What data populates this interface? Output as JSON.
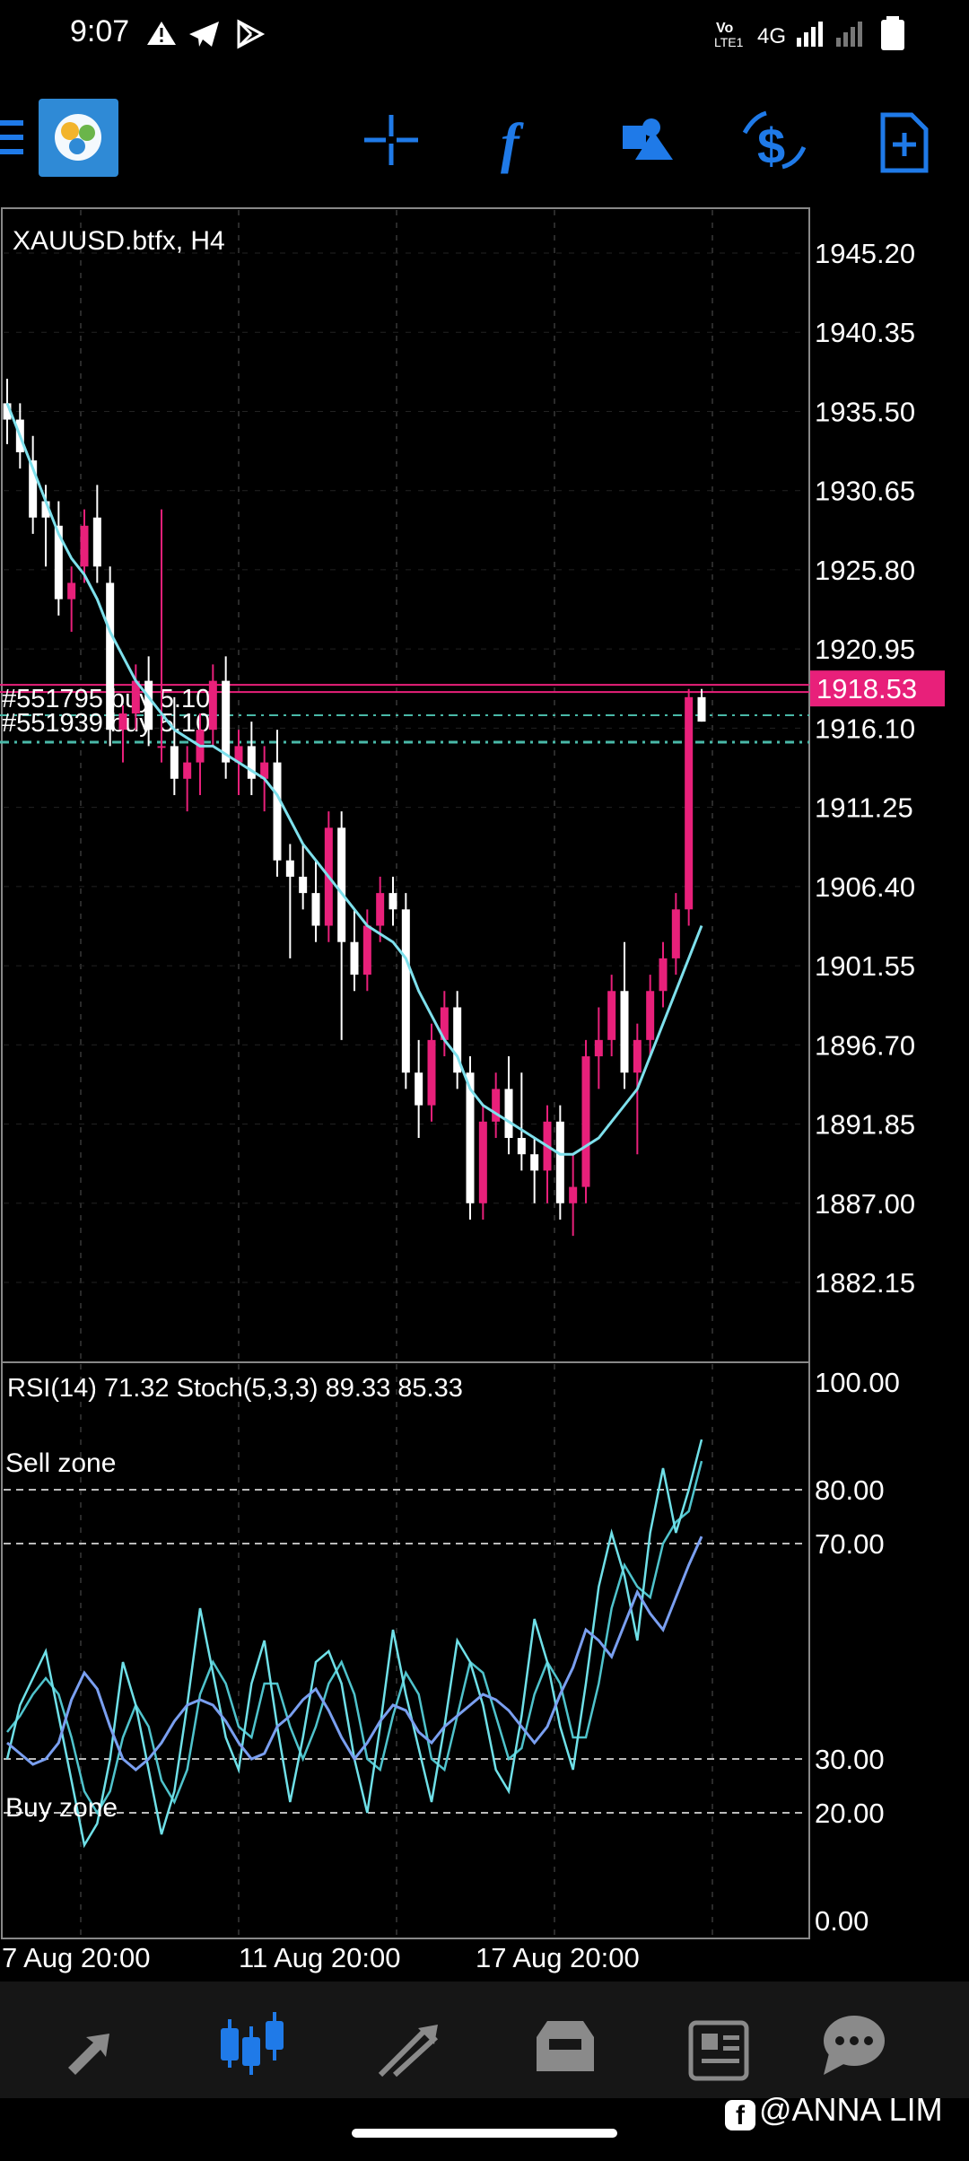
{
  "status_bar": {
    "time": "9:07",
    "network": "4G",
    "volte": "LTE1",
    "icons": [
      "alert-triangle-icon",
      "telegram-icon",
      "play-store-icon",
      "signal-icon",
      "battery-icon"
    ]
  },
  "toolbar": {
    "icons": [
      "menu-icon",
      "metatrader-logo",
      "crosshair-icon",
      "indicators-icon",
      "objects-icon",
      "trade-icon",
      "template-icon"
    ]
  },
  "chart": {
    "symbol": "XAUUSD.btfx, H4",
    "current_price": "1918.53",
    "price_labels": [
      "1945.20",
      "1940.35",
      "1935.50",
      "1930.65",
      "1925.80",
      "1920.95",
      "1916.10",
      "1911.25",
      "1906.40",
      "1901.55",
      "1896.70",
      "1891.85",
      "1887.00",
      "1882.15"
    ],
    "order_lines": [
      "#551795 buy 5.10",
      "#551939 buy 5.10"
    ],
    "date_labels": [
      "7 Aug 20:00",
      "11 Aug 20:00",
      "17 Aug 20:00"
    ]
  },
  "indicator": {
    "title": "RSI(14) 71.32 Stoch(5,3,3) 89.33 85.33",
    "levels": [
      "100.00",
      "80.00",
      "70.00",
      "30.00",
      "20.00",
      "0.00"
    ],
    "sell_zone": "Sell zone",
    "buy_zone": "Buy zone"
  },
  "chart_data": {
    "type": "candlestick",
    "symbol": "XAUUSD.btfx",
    "timeframe": "H4",
    "ylim": [
      1880,
      1948
    ],
    "candles": [
      [
        1936,
        1937.5,
        1933.5,
        1935
      ],
      [
        1935,
        1936,
        1932,
        1933
      ],
      [
        1932.5,
        1934,
        1928,
        1929
      ],
      [
        1930,
        1931,
        1926,
        1929
      ],
      [
        1928.5,
        1930,
        1923,
        1924
      ],
      [
        1924,
        1926,
        1922,
        1925
      ],
      [
        1926,
        1929.5,
        1925,
        1928.5
      ],
      [
        1929,
        1931,
        1925,
        1926
      ],
      [
        1925,
        1926,
        1915,
        1916
      ],
      [
        1916,
        1917.5,
        1914,
        1917
      ],
      [
        1917,
        1920,
        1916,
        1919
      ],
      [
        1919,
        1920.5,
        1915,
        1916
      ],
      [
        1915,
        1929.5,
        1914,
        1915
      ],
      [
        1915,
        1918,
        1912,
        1913
      ],
      [
        1913,
        1915,
        1911,
        1914
      ],
      [
        1914,
        1917,
        1912,
        1916
      ],
      [
        1916,
        1920,
        1915,
        1919
      ],
      [
        1919,
        1920.5,
        1913,
        1914
      ],
      [
        1914,
        1916,
        1912,
        1915
      ],
      [
        1915,
        1916.5,
        1912,
        1913
      ],
      [
        1913,
        1915,
        1911,
        1914
      ],
      [
        1914,
        1916,
        1907,
        1908
      ],
      [
        1908,
        1909,
        1902,
        1907
      ],
      [
        1907,
        1909,
        1905,
        1906
      ],
      [
        1906,
        1908,
        1903,
        1904
      ],
      [
        1904,
        1911,
        1903,
        1910
      ],
      [
        1910,
        1911,
        1897,
        1903
      ],
      [
        1903,
        1905,
        1900,
        1901
      ],
      [
        1901,
        1905,
        1900,
        1904
      ],
      [
        1904,
        1907,
        1903,
        1906
      ],
      [
        1906,
        1907,
        1904,
        1905
      ],
      [
        1905,
        1906,
        1894,
        1895
      ],
      [
        1895,
        1897,
        1891,
        1893
      ],
      [
        1893,
        1898,
        1892,
        1897
      ],
      [
        1897,
        1900,
        1896,
        1899
      ],
      [
        1899,
        1900,
        1894,
        1895
      ],
      [
        1895,
        1896,
        1886,
        1887
      ],
      [
        1887,
        1893,
        1886,
        1892
      ],
      [
        1892,
        1895,
        1891,
        1894
      ],
      [
        1894,
        1896,
        1890,
        1891
      ],
      [
        1891,
        1895,
        1889,
        1890
      ],
      [
        1890,
        1891,
        1887,
        1889
      ],
      [
        1889,
        1893,
        1887,
        1892
      ],
      [
        1892,
        1893,
        1886,
        1887
      ],
      [
        1887,
        1890,
        1885,
        1888
      ],
      [
        1888,
        1897,
        1887,
        1896
      ],
      [
        1896,
        1899,
        1894,
        1897
      ],
      [
        1897,
        1901,
        1896,
        1900
      ],
      [
        1900,
        1903,
        1894,
        1895
      ],
      [
        1895,
        1898,
        1890,
        1897
      ],
      [
        1897,
        1901,
        1896,
        1900
      ],
      [
        1900,
        1903,
        1899,
        1902
      ],
      [
        1902,
        1906,
        1901,
        1905
      ],
      [
        1905,
        1918.5,
        1904,
        1918
      ],
      [
        1918,
        1918.5,
        1916.5,
        1916.5
      ]
    ],
    "ma_line": [
      1936,
      1934,
      1932,
      1930,
      1928,
      1926.5,
      1925.5,
      1924,
      1922,
      1920.5,
      1919,
      1918,
      1917,
      1916,
      1915.5,
      1915,
      1915,
      1914.5,
      1914,
      1913.5,
      1913,
      1912,
      1910.5,
      1909,
      1908,
      1907,
      1906,
      1905,
      1904,
      1903.5,
      1903,
      1902,
      1900,
      1898.5,
      1897,
      1896,
      1894,
      1893,
      1892.5,
      1892,
      1891.5,
      1891,
      1890.5,
      1890,
      1890,
      1890.5,
      1891,
      1892,
      1893,
      1894,
      1896,
      1898,
      1900,
      1902,
      1904
    ],
    "rsi": [
      33,
      31,
      29,
      30,
      33,
      41,
      46,
      43,
      36,
      30,
      28,
      30,
      33,
      37,
      40,
      41,
      40,
      37,
      33,
      30,
      31,
      36,
      38,
      41,
      43,
      39,
      34,
      30,
      33,
      37,
      40,
      39,
      35,
      33,
      36,
      38,
      40,
      42,
      41,
      39,
      36,
      33,
      36,
      42,
      47,
      54,
      52,
      49,
      55,
      61,
      57,
      54,
      60,
      66,
      71.32
    ],
    "stoch_k": [
      30,
      40,
      45,
      50,
      38,
      26,
      14,
      18,
      30,
      48,
      40,
      28,
      16,
      24,
      40,
      58,
      46,
      34,
      28,
      44,
      52,
      36,
      22,
      34,
      48,
      50,
      44,
      30,
      20,
      36,
      54,
      42,
      32,
      22,
      36,
      52,
      48,
      40,
      28,
      24,
      38,
      56,
      48,
      36,
      28,
      44,
      62,
      72,
      64,
      52,
      72,
      84,
      72,
      80,
      89.33
    ],
    "stoch_d": [
      35,
      38,
      42,
      45,
      42,
      34,
      24,
      20,
      24,
      34,
      40,
      36,
      26,
      22,
      28,
      42,
      48,
      44,
      36,
      34,
      44,
      44,
      36,
      30,
      36,
      44,
      48,
      42,
      30,
      28,
      38,
      46,
      42,
      30,
      28,
      38,
      48,
      46,
      38,
      30,
      32,
      42,
      48,
      44,
      34,
      34,
      44,
      58,
      66,
      62,
      60,
      70,
      74,
      76,
      85.33
    ],
    "date_labels": [
      "7 Aug 20:00",
      "11 Aug 20:00",
      "17 Aug 20:00"
    ]
  },
  "bottom_nav": {
    "items": [
      "quotes-icon",
      "chart-icon",
      "trade-icon",
      "history-icon",
      "news-icon",
      "chat-icon"
    ]
  },
  "watermark": "@ANNA LIM",
  "colors": {
    "bear": "#ffffff",
    "bull": "#e8207a",
    "ma": "#7ee0ec",
    "accent_blue": "#1f7ae8",
    "order_line": "#49b9a8"
  }
}
